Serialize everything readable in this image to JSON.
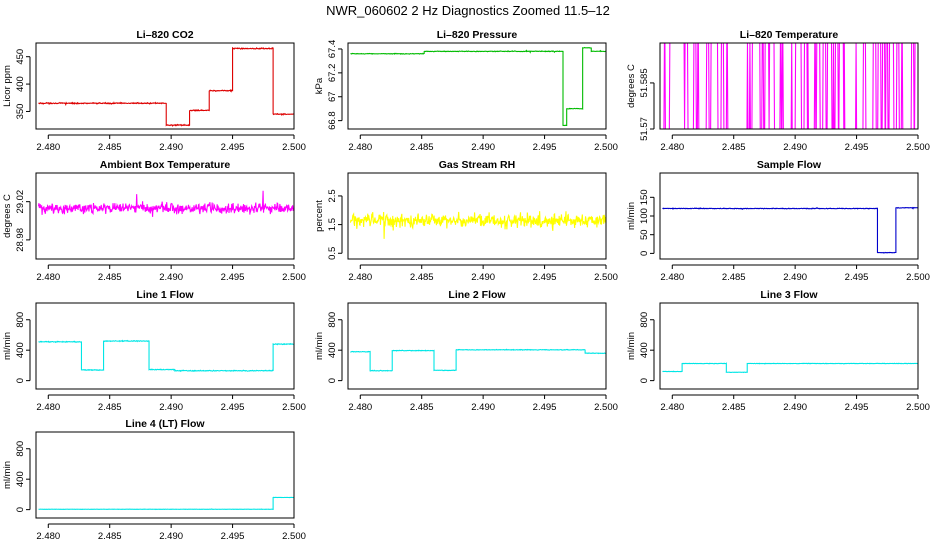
{
  "figure": {
    "title": "NWR_060602  2 Hz Diagnostics Zoomed 11.5–12"
  },
  "chart_data": [
    {
      "type": "line",
      "title": "Li–820 CO2",
      "ylabel": "Licor ppm",
      "color": "#dd0000",
      "xlim": [
        2.479,
        2.5
      ],
      "xticks": [
        "2.480",
        "2.485",
        "2.490",
        "2.495",
        "2.500"
      ],
      "ylim": [
        318,
        475
      ],
      "yticks": [
        350,
        400,
        450
      ],
      "noise": 1.5,
      "segments": [
        [
          2.4792,
          2.4896,
          365
        ],
        [
          2.4896,
          2.4915,
          325
        ],
        [
          2.4915,
          2.4931,
          352
        ],
        [
          2.4931,
          2.495,
          388
        ],
        [
          2.495,
          2.4983,
          465
        ],
        [
          2.4983,
          2.5,
          345
        ]
      ]
    },
    {
      "type": "line",
      "title": "Li–820 Pressure",
      "ylabel": "kPa",
      "color": "#00bb00",
      "xlim": [
        2.479,
        2.5
      ],
      "xticks": [
        "2.480",
        "2.485",
        "2.490",
        "2.495",
        "2.500"
      ],
      "ylim": [
        66.73,
        67.45
      ],
      "yticks": [
        66.8,
        67.0,
        67.2,
        67.4
      ],
      "noise": 0.004,
      "segments": [
        [
          2.4792,
          2.4852,
          67.36
        ],
        [
          2.4852,
          2.4965,
          67.38
        ],
        [
          2.4965,
          2.4968,
          66.76
        ],
        [
          2.4968,
          2.4981,
          66.9
        ],
        [
          2.4981,
          2.4988,
          67.41
        ],
        [
          2.4988,
          2.5,
          67.38
        ]
      ]
    },
    {
      "type": "line",
      "title": "Li–820 Temperature",
      "ylabel": "degrees C",
      "color": "#ff00ff",
      "xlim": [
        2.479,
        2.5
      ],
      "xticks": [
        "2.480",
        "2.485",
        "2.490",
        "2.495",
        "2.500"
      ],
      "ylim": [
        51.57,
        51.598
      ],
      "yticks": [
        51.57,
        51.585
      ],
      "style": "binary",
      "levels": [
        51.57,
        51.598
      ],
      "segments": [
        [
          2.4792,
          2.5,
          51.57
        ]
      ]
    },
    {
      "type": "line",
      "title": "Ambient Box Temperature",
      "ylabel": "degrees C",
      "color": "#ff00ff",
      "xlim": [
        2.479,
        2.5
      ],
      "xticks": [
        "2.480",
        "2.485",
        "2.490",
        "2.495",
        "2.500"
      ],
      "ylim": [
        28.96,
        29.05
      ],
      "yticks": [
        28.98,
        29.02
      ],
      "yticklabels": [
        "28.98",
        "29.02"
      ],
      "noise": 0.008,
      "segments": [
        [
          2.4792,
          2.5,
          29.013
        ]
      ]
    },
    {
      "type": "line",
      "title": "Gas Stream RH",
      "ylabel": "percent",
      "color": "#ffff00",
      "xlim": [
        2.479,
        2.5
      ],
      "xticks": [
        "2.480",
        "2.485",
        "2.490",
        "2.495",
        "2.500"
      ],
      "ylim": [
        0.3,
        3.3
      ],
      "yticks": [
        0.5,
        1.5,
        2.5
      ],
      "noise": 0.35,
      "segments": [
        [
          2.4792,
          2.5,
          1.65
        ]
      ]
    },
    {
      "type": "line",
      "title": "Sample Flow",
      "ylabel": "ml/min",
      "color": "#0000cc",
      "xlim": [
        2.479,
        2.5
      ],
      "xticks": [
        "2.480",
        "2.485",
        "2.490",
        "2.495",
        "2.500"
      ],
      "ylim": [
        -15,
        215
      ],
      "yticks": [
        0,
        50,
        100,
        150
      ],
      "noise": 1.2,
      "segments": [
        [
          2.4792,
          2.4967,
          120
        ],
        [
          2.4967,
          2.4982,
          2
        ],
        [
          2.4982,
          2.5,
          122
        ]
      ]
    },
    {
      "type": "line",
      "title": "Line 1 Flow",
      "ylabel": "ml/min",
      "color": "#00e6e6",
      "xlim": [
        2.479,
        2.5
      ],
      "xticks": [
        "2.480",
        "2.485",
        "2.490",
        "2.495",
        "2.500"
      ],
      "ylim": [
        -110,
        1020
      ],
      "yticks": [
        0,
        400,
        800
      ],
      "noise": 8,
      "segments": [
        [
          2.4792,
          2.4827,
          510
        ],
        [
          2.4827,
          2.4845,
          140
        ],
        [
          2.4845,
          2.4882,
          520
        ],
        [
          2.4882,
          2.4903,
          145
        ],
        [
          2.4903,
          2.4983,
          130
        ],
        [
          2.4983,
          2.5,
          480
        ]
      ]
    },
    {
      "type": "line",
      "title": "Line 2 Flow",
      "ylabel": "ml/min",
      "color": "#00e6e6",
      "xlim": [
        2.479,
        2.5
      ],
      "xticks": [
        "2.480",
        "2.485",
        "2.490",
        "2.495",
        "2.500"
      ],
      "ylim": [
        -110,
        1020
      ],
      "yticks": [
        0,
        400,
        800
      ],
      "noise": 6,
      "segments": [
        [
          2.4792,
          2.4808,
          380
        ],
        [
          2.4808,
          2.4826,
          130
        ],
        [
          2.4826,
          2.486,
          395
        ],
        [
          2.486,
          2.4878,
          135
        ],
        [
          2.4878,
          2.4983,
          405
        ],
        [
          2.4983,
          2.5,
          360
        ]
      ]
    },
    {
      "type": "line",
      "title": "Line 3 Flow",
      "ylabel": "ml/min",
      "color": "#00e6e6",
      "xlim": [
        2.479,
        2.5
      ],
      "xticks": [
        "2.480",
        "2.485",
        "2.490",
        "2.495",
        "2.500"
      ],
      "ylim": [
        -110,
        1020
      ],
      "yticks": [
        0,
        400,
        800
      ],
      "noise": 4,
      "segments": [
        [
          2.4792,
          2.4808,
          120
        ],
        [
          2.4808,
          2.4844,
          225
        ],
        [
          2.4844,
          2.4861,
          110
        ],
        [
          2.4861,
          2.5,
          225
        ]
      ]
    },
    {
      "type": "line",
      "title": "Line 4 (LT) Flow",
      "ylabel": "ml/min",
      "color": "#00e6e6",
      "xlim": [
        2.479,
        2.5
      ],
      "xticks": [
        "2.480",
        "2.485",
        "2.490",
        "2.495",
        "2.500"
      ],
      "ylim": [
        -110,
        1020
      ],
      "yticks": [
        0,
        400,
        800
      ],
      "noise": 2,
      "segments": [
        [
          2.4792,
          2.4983,
          5
        ],
        [
          2.4983,
          2.5,
          160
        ]
      ]
    }
  ]
}
